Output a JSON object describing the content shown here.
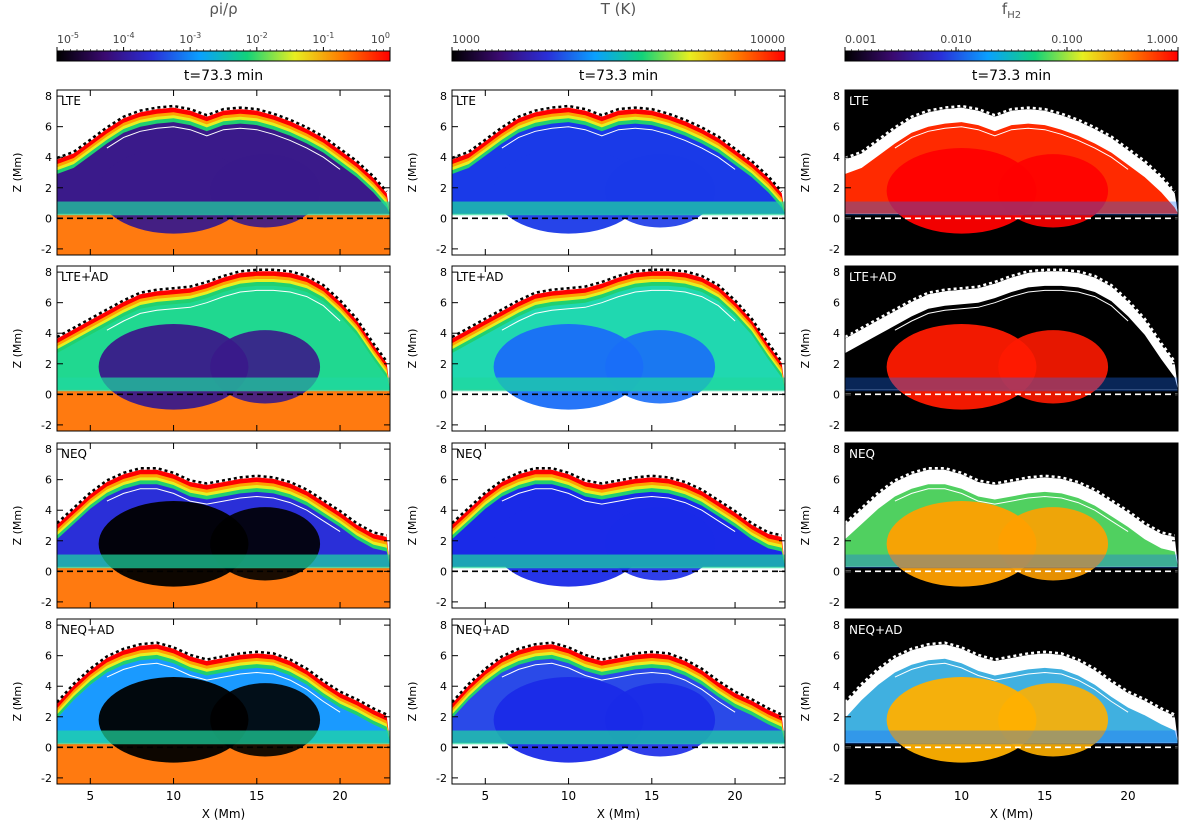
{
  "figure": {
    "time_label": "t=73.3 min",
    "ylabel": "Z (Mm)",
    "xlabel": "X (Mm)",
    "xticks": [
      5,
      10,
      15,
      20
    ],
    "yticks": [
      -2,
      0,
      2,
      4,
      6,
      8
    ],
    "xlim": [
      3,
      23
    ],
    "ylim": [
      -2.4,
      8.4
    ]
  },
  "columns": [
    {
      "id": "ionization",
      "title": "ρi/ρ",
      "colorbar": {
        "scale": "log",
        "min_label": "10^-5",
        "ticks": [
          "10^-5",
          "10^-4",
          "10^-3",
          "10^-2",
          "10^-1",
          "10^0"
        ],
        "colors": [
          "#000000",
          "#3a0a70",
          "#2a2fd8",
          "#0aa0ff",
          "#12d27a",
          "#e8ef20",
          "#ff7a00",
          "#ff0000"
        ]
      }
    },
    {
      "id": "temperature",
      "title": "T (K)",
      "colorbar": {
        "scale": "log",
        "ticks": [
          "1000",
          "10000"
        ],
        "colors": [
          "#000000",
          "#3a0a70",
          "#2a2fd8",
          "#0aa0ff",
          "#12d27a",
          "#e8ef20",
          "#ff7a00",
          "#ff0000"
        ]
      }
    },
    {
      "id": "h2fraction",
      "title": "fH2",
      "title_base": "f",
      "title_sub": "H2",
      "colorbar": {
        "scale": "log",
        "ticks": [
          "0.001",
          "0.010",
          "0.100",
          "1.000"
        ],
        "colors": [
          "#000000",
          "#3a0a70",
          "#2a2fd8",
          "#0aa0ff",
          "#12d27a",
          "#e8ef20",
          "#ff7a00",
          "#ff0000"
        ]
      }
    }
  ],
  "rows": [
    {
      "label": "LTE"
    },
    {
      "label": "LTE+AD"
    },
    {
      "label": "NEQ"
    },
    {
      "label": "NEQ+AD"
    }
  ],
  "panel_colors": {
    "ionization": {
      "bg": "#ffffff",
      "ground": "#ff7a10",
      "rim": [
        "#ff0000",
        "#ffa000",
        "#e8ef20",
        "#20d070"
      ]
    },
    "temperature": {
      "bg": "#ffffff",
      "ground": "#ffffff",
      "rim": [
        "#ff0000",
        "#ffa000",
        "#e8ef20",
        "#20d070"
      ]
    },
    "h2fraction": {
      "bg": "#000000",
      "ground": "#000000",
      "rim": [
        "#ffffff",
        "#ffffff",
        "#ffffff",
        "#ffffff"
      ]
    }
  },
  "chart_data": [
    {
      "type": "heatmap",
      "title": "ρi/ρ",
      "colorbar_range": [
        "1e-5",
        "1e0"
      ],
      "panels": [
        "LTE",
        "LTE+AD",
        "NEQ",
        "NEQ+AD"
      ],
      "bubble_fill_by_row": [
        "#3a1a8a",
        "#20d890",
        "#2a2fd8",
        "#1a9aff"
      ],
      "bubble_core_by_row": [
        "#3a1a8a",
        "#3a1a8a",
        "#000000",
        "#000000"
      ],
      "xlim": [
        3,
        23
      ],
      "ylim": [
        -2.4,
        8.4
      ],
      "xlabel": "X (Mm)",
      "ylabel": "Z (Mm)"
    },
    {
      "type": "heatmap",
      "title": "T (K)",
      "colorbar_range": [
        1000,
        10000
      ],
      "panels": [
        "LTE",
        "LTE+AD",
        "NEQ",
        "NEQ+AD"
      ],
      "bubble_fill_by_row": [
        "#1a3ae8",
        "#20d8b0",
        "#1a2ae8",
        "#2a4ae8"
      ],
      "bubble_core_by_row": [
        "#1a3ae8",
        "#1a6ef8",
        "#1a2ae8",
        "#1a2ae8"
      ],
      "xlim": [
        3,
        23
      ],
      "ylim": [
        -2.4,
        8.4
      ],
      "xlabel": "X (Mm)",
      "ylabel": "Z (Mm)"
    },
    {
      "type": "heatmap",
      "title": "fH2",
      "colorbar_range": [
        0.001,
        1.0
      ],
      "panels": [
        "LTE",
        "LTE+AD",
        "NEQ",
        "NEQ+AD"
      ],
      "bubble_fill_by_row": [
        "#ff2a00",
        "#000000",
        "#50d060",
        "#40b0e0"
      ],
      "bubble_core_by_row": [
        "#ff0000",
        "#ff1a00",
        "#ffa000",
        "#ffb000"
      ],
      "xlim": [
        3,
        23
      ],
      "ylim": [
        -2.4,
        8.4
      ],
      "xlabel": "X (Mm)",
      "ylabel": "Z (Mm)"
    }
  ]
}
